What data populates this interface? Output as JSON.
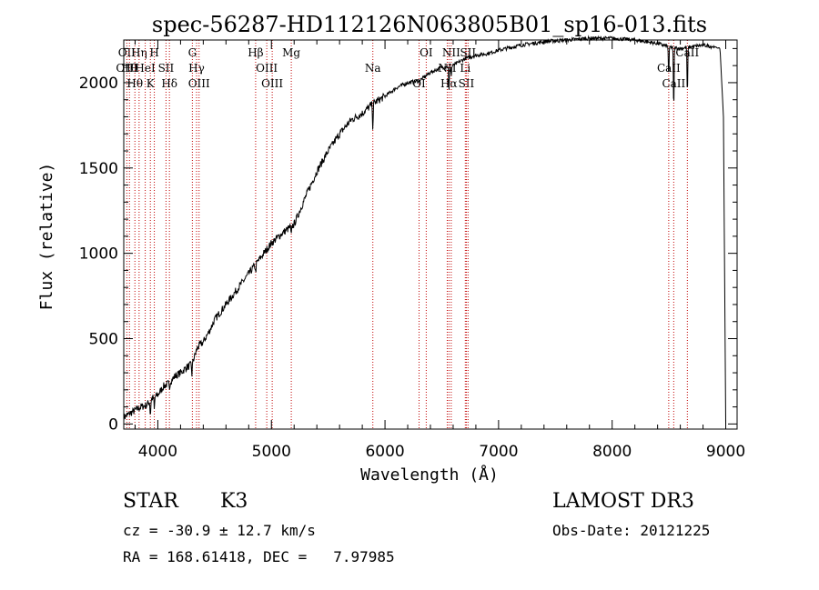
{
  "chart_data": {
    "type": "line",
    "title": "spec-56287-HD112126N063805B01_sp16-013.fits",
    "xlabel": "Wavelength (Å)",
    "ylabel": "Flux (relative)",
    "xlim": [
      3700,
      9100
    ],
    "ylim": [
      -30,
      2250
    ],
    "x_ticks": [
      4000,
      5000,
      6000,
      7000,
      8000,
      9000
    ],
    "y_ticks": [
      0,
      500,
      1000,
      1500,
      2000
    ],
    "series": [
      {
        "name": "flux",
        "x": [
          3700,
          3750,
          3800,
          3850,
          3900,
          3950,
          4000,
          4050,
          4100,
          4150,
          4200,
          4250,
          4300,
          4350,
          4400,
          4450,
          4500,
          4600,
          4700,
          4800,
          4900,
          5000,
          5100,
          5200,
          5300,
          5400,
          5500,
          5600,
          5700,
          5800,
          5900,
          6000,
          6100,
          6200,
          6300,
          6400,
          6500,
          6600,
          6700,
          6800,
          6900,
          7000,
          7200,
          7400,
          7600,
          7800,
          8000,
          8200,
          8400,
          8500,
          8600,
          8700,
          8800,
          8900,
          8950,
          8980,
          9000
        ],
        "y": [
          40,
          60,
          80,
          100,
          110,
          150,
          170,
          220,
          240,
          280,
          300,
          330,
          350,
          450,
          480,
          540,
          610,
          700,
          790,
          880,
          970,
          1060,
          1120,
          1170,
          1330,
          1480,
          1600,
          1700,
          1780,
          1820,
          1880,
          1920,
          1970,
          2000,
          2010,
          2060,
          2090,
          2100,
          2140,
          2160,
          2170,
          2190,
          2220,
          2240,
          2250,
          2260,
          2260,
          2250,
          2230,
          2210,
          2200,
          2210,
          2220,
          2210,
          2200,
          1800,
          0
        ]
      }
    ],
    "absorption_dips": [
      {
        "x": 3934,
        "depth": 90
      },
      {
        "x": 3969,
        "depth": 80
      },
      {
        "x": 4102,
        "depth": 40
      },
      {
        "x": 4300,
        "depth": 60
      },
      {
        "x": 4861,
        "depth": 50
      },
      {
        "x": 5175,
        "depth": 60
      },
      {
        "x": 5893,
        "depth": 140
      },
      {
        "x": 6563,
        "depth": 150
      },
      {
        "x": 6583,
        "depth": 60
      },
      {
        "x": 8498,
        "depth": 180
      },
      {
        "x": 8542,
        "depth": 380
      },
      {
        "x": 8662,
        "depth": 290
      }
    ],
    "line_markers": [
      {
        "x": 3727,
        "labels": [
          "OII",
          "OIII"
        ]
      },
      {
        "x": 3750,
        "labels": [
          "Hθ"
        ]
      },
      {
        "x": 3798,
        "labels": [
          "Hθ"
        ]
      },
      {
        "x": 3835,
        "labels": [
          "Hη"
        ]
      },
      {
        "x": 3889,
        "labels": [
          "HeI"
        ]
      },
      {
        "x": 3934,
        "labels": [
          "K"
        ]
      },
      {
        "x": 3969,
        "labels": [
          "H"
        ]
      },
      {
        "x": 4072,
        "labels": [
          "SII"
        ]
      },
      {
        "x": 4102,
        "labels": [
          "Hδ"
        ]
      },
      {
        "x": 4304,
        "labels": [
          "G"
        ]
      },
      {
        "x": 4341,
        "labels": [
          "Hγ"
        ]
      },
      {
        "x": 4363,
        "labels": [
          "OIII"
        ]
      },
      {
        "x": 4861,
        "labels": [
          "Hβ"
        ]
      },
      {
        "x": 4959,
        "labels": [
          "OIII"
        ]
      },
      {
        "x": 5007,
        "labels": [
          "OIII"
        ]
      },
      {
        "x": 5175,
        "labels": [
          "Mg"
        ]
      },
      {
        "x": 5893,
        "labels": [
          "Na"
        ]
      },
      {
        "x": 6300,
        "labels": [
          "OI"
        ]
      },
      {
        "x": 6363,
        "labels": [
          "OI"
        ]
      },
      {
        "x": 6548,
        "labels": [
          "NII"
        ]
      },
      {
        "x": 6563,
        "labels": [
          "Hα"
        ]
      },
      {
        "x": 6583,
        "labels": [
          "NII"
        ]
      },
      {
        "x": 6707,
        "labels": [
          "Li"
        ]
      },
      {
        "x": 6716,
        "labels": [
          "SII"
        ]
      },
      {
        "x": 6731,
        "labels": [
          "SII"
        ]
      },
      {
        "x": 8498,
        "labels": [
          "CaII"
        ]
      },
      {
        "x": 8542,
        "labels": [
          "CaII"
        ]
      },
      {
        "x": 8662,
        "labels": [
          "CaII"
        ]
      }
    ]
  },
  "info": {
    "object_class": "STAR",
    "subclass": "K3",
    "redshift_line": "cz = -30.9 ± 12.7 km/s",
    "coords_line": "RA = 168.61418, DEC =   7.97985",
    "survey": "LAMOST DR3",
    "obs_date": "Obs-Date: 20121225"
  }
}
